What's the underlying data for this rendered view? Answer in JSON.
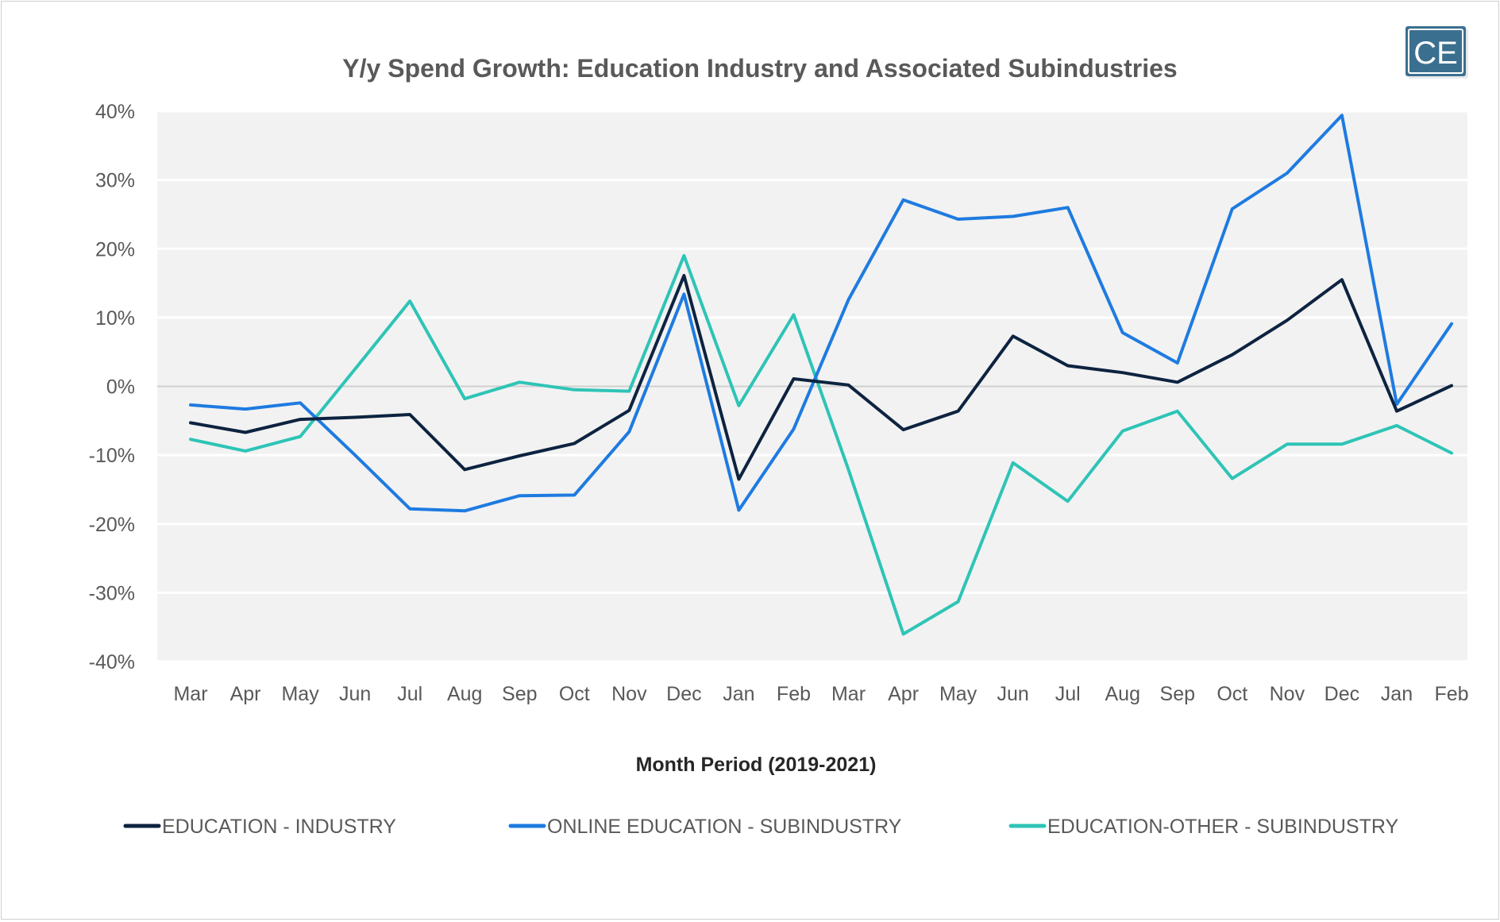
{
  "logo": {
    "text": "CE"
  },
  "chart_data": {
    "type": "line",
    "title": "Y/y Spend Growth: Education Industry and Associated Subindustries",
    "xlabel": "Month Period (2019-2021)",
    "ylabel": "",
    "ylim": [
      -40,
      40
    ],
    "yticks": [
      "40%",
      "30%",
      "20%",
      "10%",
      "0%",
      "-10%",
      "-20%",
      "-30%",
      "-40%"
    ],
    "ytick_values": [
      40,
      30,
      20,
      10,
      0,
      -10,
      -20,
      -30,
      -40
    ],
    "categories": [
      "Mar",
      "Apr",
      "May",
      "Jun",
      "Jul",
      "Aug",
      "Sep",
      "Oct",
      "Nov",
      "Dec",
      "Jan",
      "Feb",
      "Mar",
      "Apr",
      "May",
      "Jun",
      "Jul",
      "Aug",
      "Sep",
      "Oct",
      "Nov",
      "Dec",
      "Jan",
      "Feb"
    ],
    "grid": true,
    "legend_position": "bottom",
    "series": [
      {
        "name": "EDUCATION - INDUSTRY",
        "color": "#0d2340",
        "values": [
          -5.3,
          -6.7,
          -4.8,
          -4.5,
          -4.1,
          -12.1,
          -10.1,
          -8.3,
          -3.5,
          16.1,
          -13.5,
          1.1,
          0.2,
          -6.3,
          -3.6,
          7.3,
          3.0,
          2.0,
          0.6,
          4.6,
          9.6,
          15.5,
          -3.6,
          0.1
        ]
      },
      {
        "name": "ONLINE EDUCATION - SUBINDUSTRY",
        "color": "#1e7be0",
        "values": [
          -2.7,
          -3.3,
          -2.4,
          -10.0,
          -17.8,
          -18.1,
          -15.9,
          -15.8,
          -6.6,
          13.4,
          -18.0,
          -6.2,
          12.6,
          27.1,
          24.3,
          24.7,
          26.0,
          7.8,
          3.4,
          25.8,
          31.0,
          39.4,
          -2.6,
          9.1
        ]
      },
      {
        "name": "EDUCATION-OTHER - SUBINDUSTRY",
        "color": "#2ec4b6",
        "values": [
          -7.7,
          -9.4,
          -7.3,
          2.5,
          12.4,
          -1.8,
          0.6,
          -0.5,
          -0.7,
          19.0,
          -2.8,
          10.4,
          -12.1,
          -36.0,
          -31.3,
          -11.1,
          -16.7,
          -6.5,
          -3.6,
          -13.4,
          -8.4,
          -8.4,
          -5.7,
          -9.7
        ]
      }
    ]
  }
}
